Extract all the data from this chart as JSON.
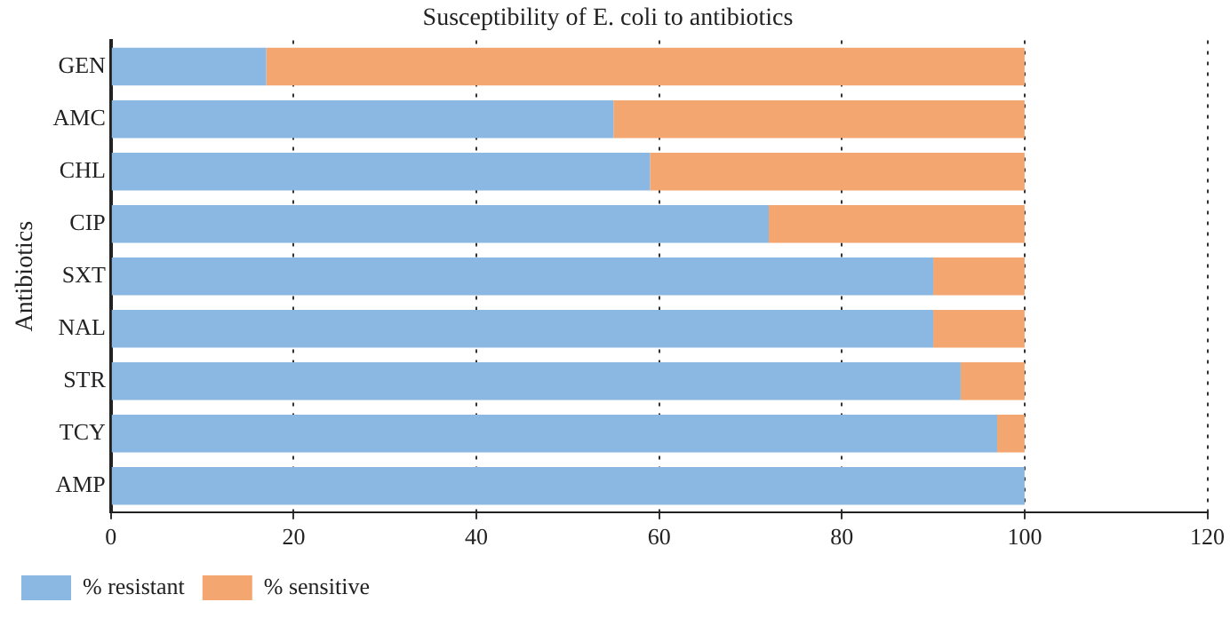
{
  "chart_data": {
    "type": "bar",
    "orientation": "horizontal",
    "stacked": true,
    "title": "Susceptibility of E. coli to antibiotics",
    "ylabel": "Antibiotics",
    "categories": [
      "GEN",
      "AMC",
      "CHL",
      "CIP",
      "SXT",
      "NAL",
      "STR",
      "TCY",
      "AMP"
    ],
    "series": [
      {
        "name": "% resistant",
        "color": "#8ab8e2",
        "values": [
          17,
          55,
          59,
          72,
          90,
          90,
          93,
          97,
          100
        ]
      },
      {
        "name": "% sensitive",
        "color": "#f3a66f",
        "values": [
          83,
          45,
          41,
          28,
          10,
          10,
          7,
          3,
          0
        ]
      }
    ],
    "xlim": [
      0,
      120
    ],
    "xticks": [
      0,
      20,
      40,
      60,
      80,
      100,
      120
    ],
    "grid": "x",
    "legend": "bottom left"
  }
}
